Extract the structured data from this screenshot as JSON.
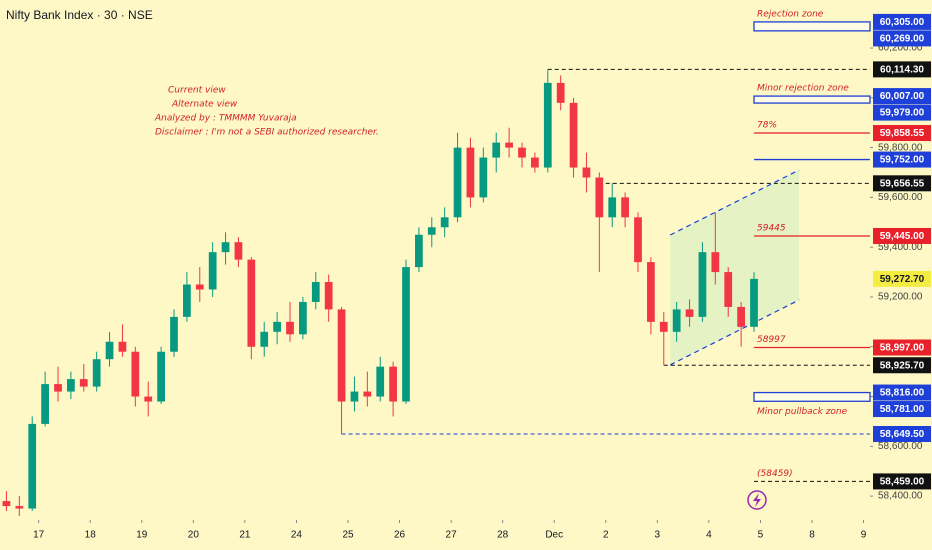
{
  "chart_data": {
    "type": "candlestick",
    "title": "Nifty Bank Index · 30 · NSE",
    "annotations": [
      "Current view",
      "Alternate view",
      "Analyzed by : TMMMM Yuvaraja",
      "Disclaimer : I'm not a SEBI authorized researcher."
    ],
    "up_color": "#089981",
    "down_color": "#f23645",
    "xlim": [
      0,
      67.5
    ],
    "xticks": [
      {
        "value": 3,
        "label": "17"
      },
      {
        "value": 7,
        "label": "18"
      },
      {
        "value": 11,
        "label": "19"
      },
      {
        "value": 15,
        "label": "20"
      },
      {
        "value": 19,
        "label": "21"
      },
      {
        "value": 23,
        "label": "24"
      },
      {
        "value": 27,
        "label": "25"
      },
      {
        "value": 31,
        "label": "26"
      },
      {
        "value": 35,
        "label": "27"
      },
      {
        "value": 39,
        "label": "28"
      },
      {
        "value": 43,
        "label": "Dec"
      },
      {
        "value": 47,
        "label": "2"
      },
      {
        "value": 51,
        "label": "3"
      },
      {
        "value": 55,
        "label": "4"
      },
      {
        "value": 59,
        "label": "5"
      },
      {
        "value": 63,
        "label": "8"
      },
      {
        "value": 67,
        "label": "9"
      }
    ],
    "ylim": [
      58304,
      60393
    ],
    "yticks": [
      {
        "value": 58400,
        "label": "58,400.00"
      },
      {
        "value": 58600,
        "label": "58,600.00"
      },
      {
        "value": 58800,
        "label": "58,800.00"
      },
      {
        "value": 59000,
        "label": "59,000.00"
      },
      {
        "value": 59200,
        "label": "59,200.00"
      },
      {
        "value": 59400,
        "label": "59,400.00"
      },
      {
        "value": 59600,
        "label": "59,600.00"
      },
      {
        "value": 59800,
        "label": "59,800.00"
      },
      {
        "value": 60000,
        "label": "60,000.00"
      },
      {
        "value": 60200,
        "label": "60,200.00"
      }
    ],
    "candles": [
      [
        58380,
        58420,
        58340,
        58360
      ],
      [
        58360,
        58400,
        58320,
        58350
      ],
      [
        58350,
        58720,
        58340,
        58690
      ],
      [
        58690,
        58900,
        58680,
        58850
      ],
      [
        58850,
        58920,
        58780,
        58820
      ],
      [
        58820,
        58900,
        58790,
        58870
      ],
      [
        58870,
        58930,
        58820,
        58840
      ],
      [
        58840,
        58980,
        58820,
        58950
      ],
      [
        58950,
        59060,
        58920,
        59020
      ],
      [
        59020,
        59090,
        58960,
        58980
      ],
      [
        58980,
        59000,
        58760,
        58800
      ],
      [
        58800,
        58860,
        58720,
        58780
      ],
      [
        58780,
        59000,
        58770,
        58980
      ],
      [
        58980,
        59150,
        58960,
        59120
      ],
      [
        59120,
        59300,
        59100,
        59250
      ],
      [
        59250,
        59320,
        59180,
        59230
      ],
      [
        59230,
        59420,
        59200,
        59380
      ],
      [
        59380,
        59460,
        59330,
        59420
      ],
      [
        59420,
        59440,
        59320,
        59350
      ],
      [
        59350,
        59360,
        58950,
        59000
      ],
      [
        59000,
        59100,
        58960,
        59060
      ],
      [
        59060,
        59140,
        59010,
        59100
      ],
      [
        59100,
        59180,
        59020,
        59050
      ],
      [
        59050,
        59200,
        59030,
        59180
      ],
      [
        59180,
        59300,
        59150,
        59260
      ],
      [
        59260,
        59290,
        59100,
        59150
      ],
      [
        59150,
        59160,
        58650,
        58780
      ],
      [
        58780,
        58880,
        58740,
        58820
      ],
      [
        58820,
        58900,
        58760,
        58800
      ],
      [
        58800,
        58960,
        58780,
        58920
      ],
      [
        58920,
        58940,
        58720,
        58780
      ],
      [
        58780,
        59350,
        58770,
        59320
      ],
      [
        59320,
        59480,
        59300,
        59450
      ],
      [
        59450,
        59520,
        59400,
        59480
      ],
      [
        59480,
        59560,
        59440,
        59520
      ],
      [
        59520,
        59860,
        59500,
        59800
      ],
      [
        59800,
        59840,
        59560,
        59600
      ],
      [
        59600,
        59800,
        59580,
        59760
      ],
      [
        59760,
        59860,
        59700,
        59820
      ],
      [
        59820,
        59880,
        59760,
        59800
      ],
      [
        59800,
        59820,
        59720,
        59760
      ],
      [
        59760,
        59780,
        59700,
        59720
      ],
      [
        59720,
        60114.3,
        59700,
        60060
      ],
      [
        60060,
        60090,
        59950,
        59980
      ],
      [
        59980,
        60000,
        59680,
        59720
      ],
      [
        59720,
        59780,
        59620,
        59680
      ],
      [
        59680,
        59700,
        59300,
        59520
      ],
      [
        59520,
        59656.55,
        59480,
        59600
      ],
      [
        59600,
        59620,
        59480,
        59520
      ],
      [
        59520,
        59540,
        59300,
        59340
      ],
      [
        59340,
        59360,
        59050,
        59100
      ],
      [
        59100,
        59140,
        58925.7,
        59060
      ],
      [
        59060,
        59180,
        59020,
        59150
      ],
      [
        59150,
        59190,
        59080,
        59120
      ],
      [
        59120,
        59420,
        59100,
        59380
      ],
      [
        59380,
        59540,
        59250,
        59300
      ],
      [
        59300,
        59320,
        59120,
        59160
      ],
      [
        59160,
        59180,
        59000,
        59080
      ],
      [
        59080,
        59300,
        59060,
        59272.7
      ]
    ],
    "last_price_label": "59,272.70",
    "last_price_color": "#f5ec42",
    "levels": [
      {
        "value": 60114.3,
        "label": "60,114.30",
        "color": "#111111",
        "style": "dashed",
        "from": 42.5
      },
      {
        "value": 59858.55,
        "label": "59,858.55",
        "color": "#e8202a",
        "style": "solid",
        "from": 58.5,
        "note": "78%",
        "note_color": "#1e3fd8"
      },
      {
        "value": 59752,
        "label": "59,752.00",
        "color": "#1e3fd8",
        "style": "solid",
        "from": 58.5
      },
      {
        "value": 59656.55,
        "label": "59,656.55",
        "color": "#111111",
        "style": "dashed",
        "from": 47
      },
      {
        "value": 59445,
        "label": "59,445.00",
        "color": "#e8202a",
        "style": "solid",
        "from": 58.5,
        "note": "59445",
        "note_color": "#e8202a"
      },
      {
        "value": 58997,
        "label": "58,997.00",
        "color": "#e8202a",
        "style": "solid",
        "from": 58.5,
        "note": "58997",
        "note_color": "#e8202a"
      },
      {
        "value": 58925.7,
        "label": "58,925.70",
        "color": "#111111",
        "style": "dashed",
        "from": 51.5
      },
      {
        "value": 58649.5,
        "label": "58,649.50",
        "color": "#1e3fd8",
        "style": "dashed",
        "from": 26.5
      },
      {
        "value": 58459,
        "label": "58,459.00",
        "color": "#111111",
        "style": "dashed",
        "from": 58.5,
        "note": "(58459)",
        "note_color": "#7b1fa2"
      }
    ],
    "zones": [
      {
        "name": "Rejection zone",
        "top": {
          "value": 60305,
          "label": "60,305.00"
        },
        "bottom": {
          "value": 60269,
          "label": "60,269.00"
        },
        "color": "#1e3fd8",
        "from": 58.5,
        "label_side": "above"
      },
      {
        "name": "Minor rejection zone",
        "top": {
          "value": 60007,
          "label": "60,007.00"
        },
        "bottom": {
          "value": 59979,
          "label": "59,979.00"
        },
        "color": "#1e3fd8",
        "from": 58.5,
        "label_side": "above"
      },
      {
        "name": "Minor pullback zone",
        "top": {
          "value": 58816,
          "label": "58,816.00"
        },
        "bottom": {
          "value": 58781,
          "label": "58,781.00"
        },
        "color": "#1e3fd8",
        "from": 58.5,
        "label_side": "below"
      }
    ],
    "channel": {
      "upper": [
        [
          52,
          59449
        ],
        [
          62,
          59710
        ]
      ],
      "lower": [
        [
          52,
          58927
        ],
        [
          62,
          59188
        ]
      ],
      "color": "#1e3fd8"
    }
  }
}
